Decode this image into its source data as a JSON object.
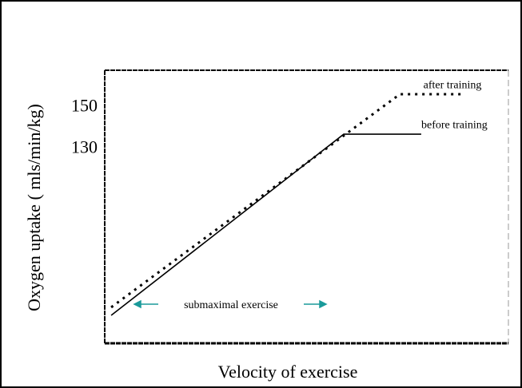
{
  "chart_data": {
    "type": "line",
    "x_label": "Velocity of exercise",
    "y_label": "Oxygen uptake ( mls/min/kg)",
    "xlim": [
      0,
      100
    ],
    "ylim": [
      36,
      168
    ],
    "yticks": [
      130,
      150
    ],
    "series": [
      {
        "name": "before training",
        "color": "#000000",
        "style": "solid",
        "x": [
          1.6,
          59.2,
          78.4
        ],
        "values": [
          49.5,
          137.1,
          137.1
        ]
      },
      {
        "name": "after training",
        "color": "#000000",
        "style": "dotted",
        "x": [
          1.6,
          73.1,
          88.9
        ],
        "values": [
          53.4,
          156.4,
          156.4
        ]
      }
    ],
    "annotations": [
      "submaximal exercise"
    ]
  }
}
